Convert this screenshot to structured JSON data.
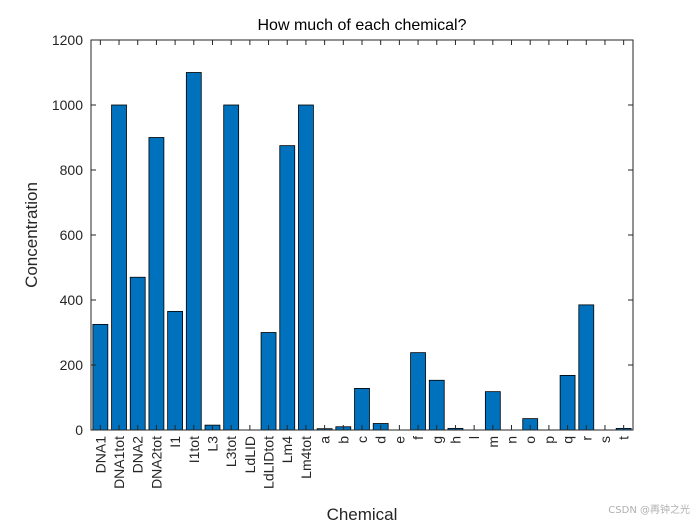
{
  "chart_data": {
    "type": "bar",
    "title": "How much of each chemical?",
    "xlabel": "Chemical",
    "ylabel": "Concentration",
    "ylim": [
      0,
      1200
    ],
    "yticks": [
      0,
      200,
      400,
      600,
      800,
      1000,
      1200
    ],
    "grid": false,
    "categories": [
      "DNA1",
      "DNA1tot",
      "DNA2",
      "DNA2tot",
      "I1",
      "I1tot",
      "L3",
      "L3tot",
      "LdLID",
      "LdLIDtot",
      "Lm4",
      "Lm4tot",
      "a",
      "b",
      "c",
      "d",
      "e",
      "f",
      "g",
      "h",
      "l",
      "m",
      "n",
      "o",
      "p",
      "q",
      "r",
      "s",
      "t"
    ],
    "values": [
      325,
      1000,
      470,
      900,
      365,
      1100,
      15,
      1000,
      0,
      300,
      875,
      1000,
      4,
      10,
      128,
      20,
      0,
      238,
      153,
      5,
      0,
      118,
      0,
      35,
      0,
      168,
      385,
      0,
      5
    ],
    "bar_color": "#0072BD"
  },
  "watermark": "CSDN @再钟之光"
}
